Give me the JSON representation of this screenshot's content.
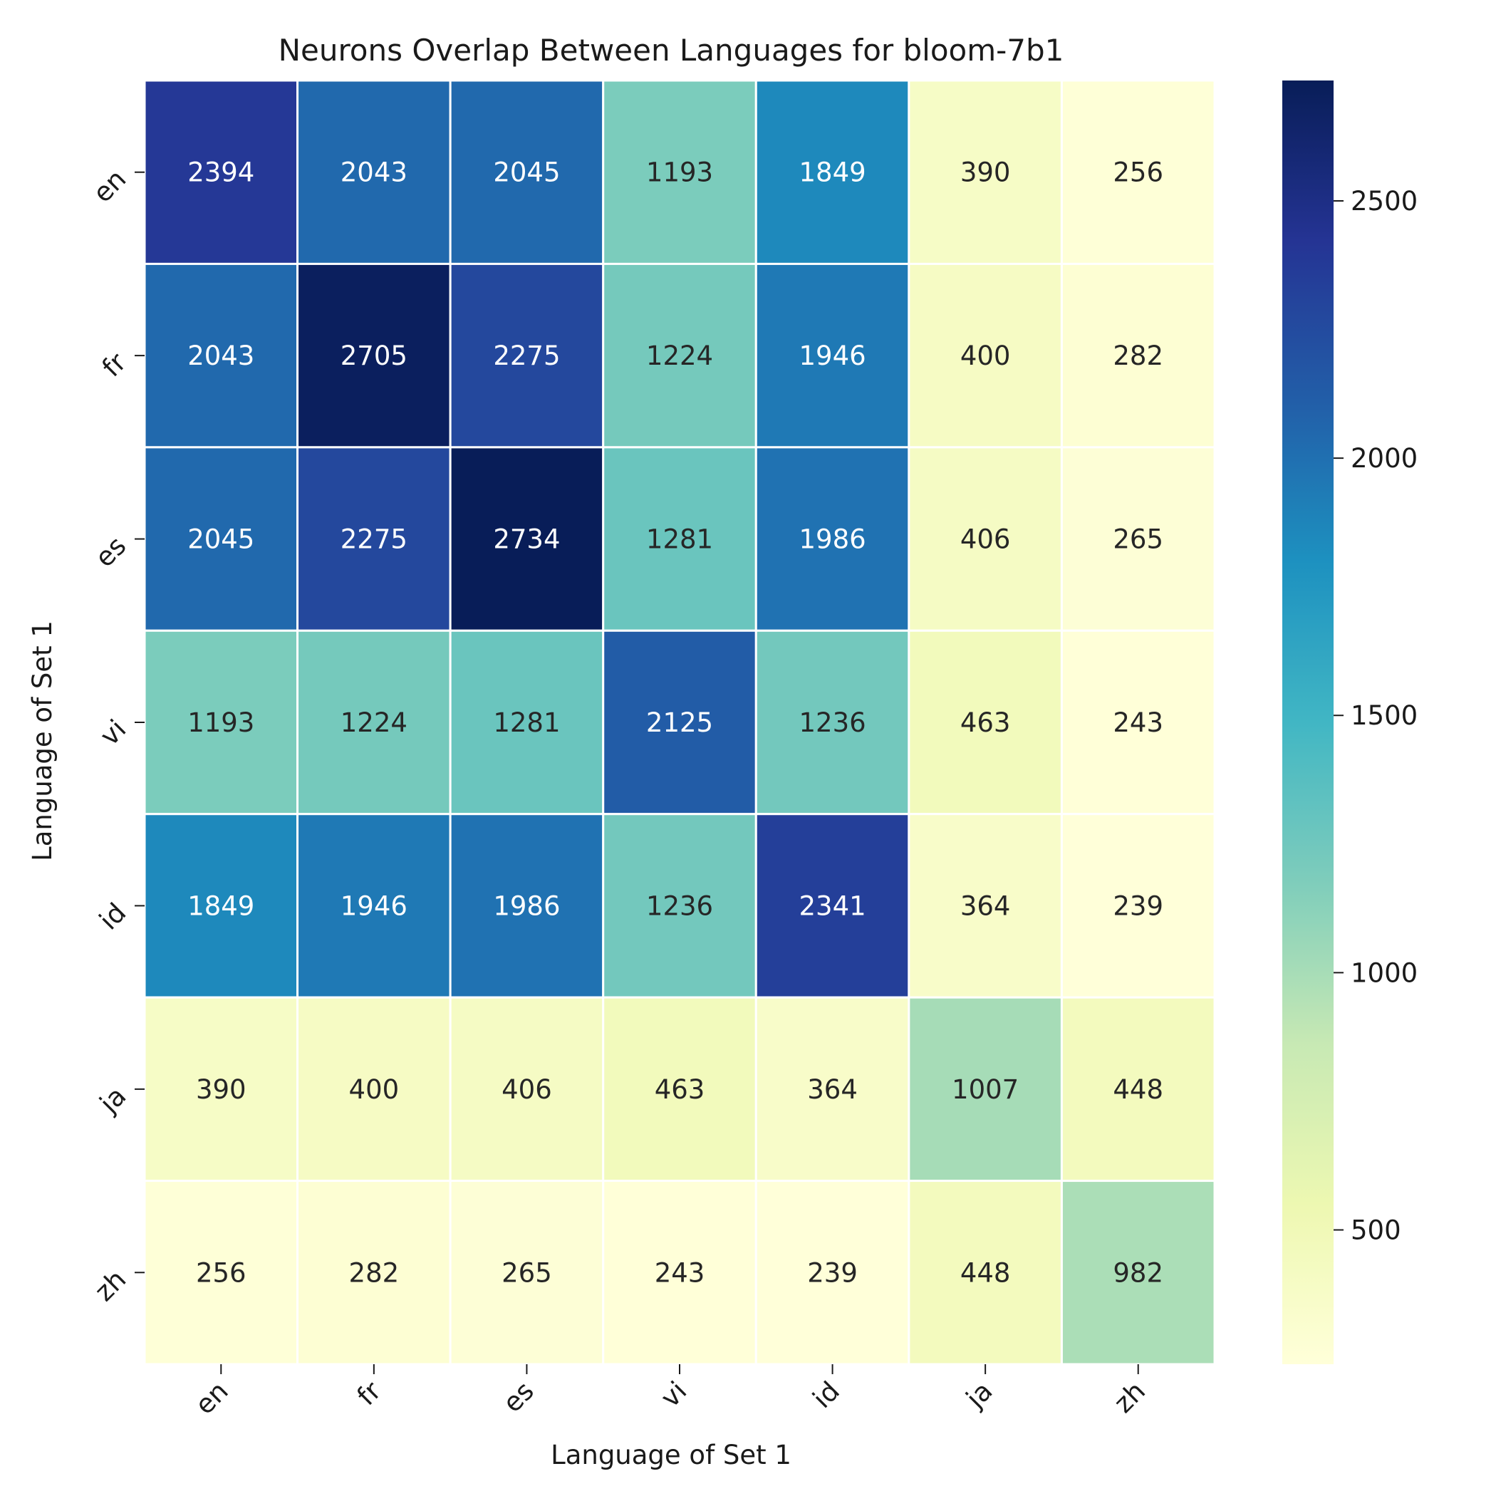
{
  "chart_data": {
    "type": "heatmap",
    "title": "Neurons Overlap Between Languages for bloom-7b1",
    "xlabel": "Language of Set 1",
    "ylabel": "Language of Set 1",
    "x_categories": [
      "en",
      "fr",
      "es",
      "vi",
      "id",
      "ja",
      "zh"
    ],
    "y_categories": [
      "en",
      "fr",
      "es",
      "vi",
      "id",
      "ja",
      "zh"
    ],
    "values": [
      [
        2394,
        2043,
        2045,
        1193,
        1849,
        390,
        256
      ],
      [
        2043,
        2705,
        2275,
        1224,
        1946,
        400,
        282
      ],
      [
        2045,
        2275,
        2734,
        1281,
        1986,
        406,
        265
      ],
      [
        1193,
        1224,
        1281,
        2125,
        1236,
        463,
        243
      ],
      [
        1849,
        1946,
        1986,
        1236,
        2341,
        364,
        239
      ],
      [
        390,
        400,
        406,
        463,
        364,
        1007,
        448
      ],
      [
        256,
        282,
        265,
        243,
        239,
        448,
        982
      ]
    ],
    "colormap": "YlGnBu",
    "colorbar": {
      "min": 239,
      "max": 2734,
      "ticks": [
        500,
        1000,
        1500,
        2000,
        2500
      ]
    },
    "grid": true,
    "legend": "colorbar-right"
  }
}
